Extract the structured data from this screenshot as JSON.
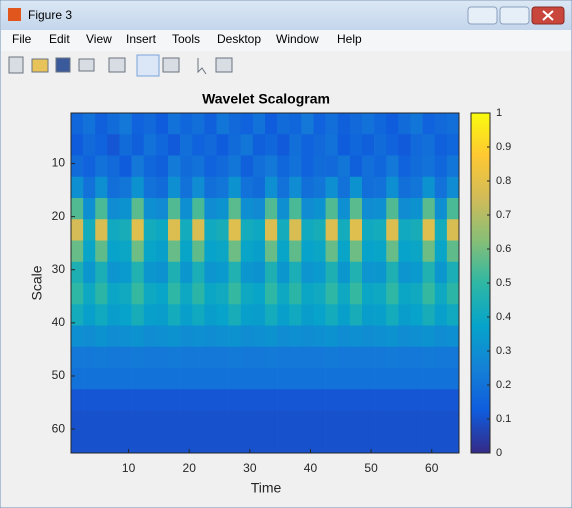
{
  "window": {
    "title": "Figure 3",
    "menu": [
      "File",
      "Edit",
      "View",
      "Insert",
      "Tools",
      "Desktop",
      "Window",
      "Help"
    ]
  },
  "chart_data": {
    "type": "heatmap",
    "title": "Wavelet Scalogram",
    "x_label": "Time",
    "y_label": "Scale",
    "xbins": [
      0.5,
      2.5,
      4.5,
      6.5,
      8.5,
      10.5,
      12.5,
      14.5,
      16.5,
      18.5,
      20.5,
      22.5,
      24.5,
      26.5,
      28.5,
      30.5,
      32.5,
      34.5,
      36.5,
      38.5,
      40.5,
      42.5,
      44.5,
      46.5,
      48.5,
      50.5,
      52.5,
      54.5,
      56.5,
      58.5,
      60.5,
      62.5,
      64.5
    ],
    "ybins": [
      0.5,
      4.5,
      8.5,
      12.5,
      16.5,
      20.5,
      24.5,
      28.5,
      32.5,
      36.5,
      40.5,
      44.5,
      48.5,
      52.5,
      56.5,
      60.5,
      64.5
    ],
    "values": [
      [
        0.16,
        0.2,
        0.14,
        0.18,
        0.22,
        0.15,
        0.17,
        0.13,
        0.2,
        0.16,
        0.19,
        0.14,
        0.21,
        0.17,
        0.15,
        0.2,
        0.13,
        0.18,
        0.16,
        0.22,
        0.15,
        0.19,
        0.14,
        0.17,
        0.2,
        0.16,
        0.13,
        0.18,
        0.21,
        0.15,
        0.17,
        0.19
      ],
      [
        0.13,
        0.17,
        0.15,
        0.11,
        0.18,
        0.14,
        0.2,
        0.16,
        0.12,
        0.19,
        0.15,
        0.17,
        0.13,
        0.18,
        0.21,
        0.14,
        0.16,
        0.12,
        0.19,
        0.15,
        0.17,
        0.2,
        0.13,
        0.16,
        0.14,
        0.18,
        0.15,
        0.12,
        0.17,
        0.19,
        0.14,
        0.16
      ],
      [
        0.18,
        0.15,
        0.2,
        0.17,
        0.13,
        0.22,
        0.16,
        0.14,
        0.23,
        0.18,
        0.2,
        0.15,
        0.17,
        0.21,
        0.14,
        0.19,
        0.22,
        0.16,
        0.2,
        0.15,
        0.18,
        0.17,
        0.21,
        0.14,
        0.19,
        0.16,
        0.22,
        0.15,
        0.18,
        0.2,
        0.16,
        0.21
      ],
      [
        0.3,
        0.2,
        0.3,
        0.19,
        0.21,
        0.31,
        0.2,
        0.18,
        0.3,
        0.2,
        0.29,
        0.19,
        0.21,
        0.31,
        0.2,
        0.18,
        0.3,
        0.2,
        0.29,
        0.19,
        0.21,
        0.3,
        0.2,
        0.31,
        0.19,
        0.2,
        0.3,
        0.19,
        0.21,
        0.31,
        0.2,
        0.29
      ],
      [
        0.55,
        0.3,
        0.54,
        0.29,
        0.31,
        0.56,
        0.3,
        0.28,
        0.55,
        0.3,
        0.54,
        0.29,
        0.31,
        0.56,
        0.3,
        0.28,
        0.55,
        0.3,
        0.54,
        0.29,
        0.31,
        0.55,
        0.3,
        0.56,
        0.29,
        0.3,
        0.55,
        0.29,
        0.31,
        0.56,
        0.3,
        0.54
      ],
      [
        0.76,
        0.42,
        0.77,
        0.41,
        0.43,
        0.79,
        0.42,
        0.4,
        0.78,
        0.42,
        0.77,
        0.41,
        0.43,
        0.79,
        0.42,
        0.4,
        0.78,
        0.42,
        0.77,
        0.41,
        0.43,
        0.78,
        0.42,
        0.79,
        0.41,
        0.42,
        0.78,
        0.41,
        0.43,
        0.79,
        0.42,
        0.77
      ],
      [
        0.58,
        0.38,
        0.57,
        0.37,
        0.39,
        0.59,
        0.38,
        0.36,
        0.58,
        0.38,
        0.57,
        0.37,
        0.39,
        0.59,
        0.38,
        0.36,
        0.58,
        0.38,
        0.57,
        0.37,
        0.39,
        0.58,
        0.38,
        0.59,
        0.37,
        0.38,
        0.58,
        0.37,
        0.39,
        0.59,
        0.38,
        0.57
      ],
      [
        0.45,
        0.33,
        0.44,
        0.32,
        0.34,
        0.46,
        0.33,
        0.31,
        0.45,
        0.33,
        0.44,
        0.32,
        0.34,
        0.46,
        0.33,
        0.31,
        0.45,
        0.33,
        0.44,
        0.32,
        0.34,
        0.45,
        0.33,
        0.46,
        0.32,
        0.33,
        0.45,
        0.32,
        0.34,
        0.46,
        0.33,
        0.44
      ],
      [
        0.5,
        0.4,
        0.49,
        0.39,
        0.41,
        0.51,
        0.4,
        0.38,
        0.5,
        0.4,
        0.49,
        0.39,
        0.41,
        0.51,
        0.4,
        0.38,
        0.5,
        0.4,
        0.49,
        0.39,
        0.41,
        0.5,
        0.4,
        0.51,
        0.39,
        0.4,
        0.5,
        0.39,
        0.41,
        0.51,
        0.4,
        0.49
      ],
      [
        0.42,
        0.36,
        0.41,
        0.35,
        0.37,
        0.43,
        0.36,
        0.35,
        0.42,
        0.36,
        0.41,
        0.35,
        0.37,
        0.43,
        0.36,
        0.35,
        0.42,
        0.36,
        0.41,
        0.35,
        0.37,
        0.42,
        0.36,
        0.43,
        0.35,
        0.36,
        0.42,
        0.35,
        0.37,
        0.43,
        0.36,
        0.41
      ],
      [
        0.3,
        0.29,
        0.31,
        0.29,
        0.3,
        0.31,
        0.29,
        0.3,
        0.31,
        0.29,
        0.3,
        0.29,
        0.3,
        0.31,
        0.29,
        0.3,
        0.31,
        0.29,
        0.3,
        0.29,
        0.3,
        0.31,
        0.29,
        0.3,
        0.29,
        0.3,
        0.31,
        0.29,
        0.3,
        0.31,
        0.29,
        0.3
      ],
      [
        0.22,
        0.22,
        0.23,
        0.22,
        0.22,
        0.23,
        0.22,
        0.22,
        0.23,
        0.22,
        0.22,
        0.22,
        0.22,
        0.23,
        0.22,
        0.22,
        0.23,
        0.22,
        0.22,
        0.22,
        0.22,
        0.23,
        0.22,
        0.22,
        0.22,
        0.22,
        0.23,
        0.22,
        0.22,
        0.23,
        0.22,
        0.22
      ],
      [
        0.2,
        0.2,
        0.2,
        0.2,
        0.2,
        0.2,
        0.2,
        0.2,
        0.2,
        0.2,
        0.2,
        0.2,
        0.2,
        0.2,
        0.2,
        0.2,
        0.2,
        0.2,
        0.2,
        0.2,
        0.2,
        0.2,
        0.2,
        0.2,
        0.2,
        0.2,
        0.2,
        0.2,
        0.2,
        0.2,
        0.2,
        0.2
      ],
      [
        0.11,
        0.11,
        0.11,
        0.11,
        0.11,
        0.11,
        0.11,
        0.11,
        0.11,
        0.11,
        0.11,
        0.11,
        0.11,
        0.11,
        0.11,
        0.11,
        0.11,
        0.11,
        0.11,
        0.11,
        0.11,
        0.11,
        0.11,
        0.11,
        0.11,
        0.11,
        0.11,
        0.11,
        0.11,
        0.11,
        0.11,
        0.11
      ],
      [
        0.1,
        0.1,
        0.1,
        0.1,
        0.1,
        0.1,
        0.1,
        0.1,
        0.1,
        0.1,
        0.1,
        0.1,
        0.1,
        0.1,
        0.1,
        0.1,
        0.1,
        0.1,
        0.1,
        0.1,
        0.1,
        0.1,
        0.1,
        0.1,
        0.1,
        0.1,
        0.1,
        0.1,
        0.1,
        0.1,
        0.1,
        0.1
      ],
      [
        0.1,
        0.1,
        0.1,
        0.1,
        0.1,
        0.1,
        0.1,
        0.1,
        0.1,
        0.1,
        0.1,
        0.1,
        0.1,
        0.1,
        0.1,
        0.1,
        0.1,
        0.1,
        0.1,
        0.1,
        0.1,
        0.1,
        0.1,
        0.1,
        0.1,
        0.1,
        0.1,
        0.1,
        0.1,
        0.1,
        0.1,
        0.1
      ]
    ],
    "xlim": [
      0.5,
      64.5
    ],
    "ylim": [
      0.5,
      64.5
    ],
    "y_reversed": true,
    "xticks": [
      10,
      20,
      30,
      40,
      50,
      60
    ],
    "yticks": [
      10,
      20,
      30,
      40,
      50,
      60
    ],
    "clim": [
      0,
      1
    ],
    "cticks": [
      0,
      0.1,
      0.2,
      0.3,
      0.4,
      0.5,
      0.6,
      0.7,
      0.8,
      0.9,
      1
    ],
    "colormap": [
      "#352a87",
      "#0f5cdd",
      "#1481d6",
      "#06a4ca",
      "#2eb7a4",
      "#87bf77",
      "#d1bb59",
      "#fec832",
      "#f9fb0e"
    ]
  }
}
